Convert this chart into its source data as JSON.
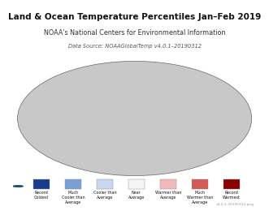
{
  "title": "Land & Ocean Temperature Percentiles Jan–Feb 2019",
  "subtitle": "NOAA's National Centers for Environmental Information",
  "datasource": "Data Source: NOAAGlobalTemp v4.0.1–20190312",
  "title_fontsize": 7.5,
  "subtitle_fontsize": 5.8,
  "datasource_fontsize": 4.8,
  "fig_background": "#ffffff",
  "legend_labels": [
    "Record\nColdest",
    "Much\nCooler than\nAverage",
    "Cooler than\nAverage",
    "Near\nAverage",
    "Warmer than\nAverage",
    "Much\nWarmer than\nAverage",
    "Record\nWarmest"
  ],
  "legend_colors": [
    "#1a3c8f",
    "#7b9fd4",
    "#c8d8f0",
    "#f5f5f5",
    "#f5b8b8",
    "#d45a5a",
    "#8b0000"
  ],
  "map_colors": [
    "#1a3c8f",
    "#7b9fd4",
    "#c8d8f0",
    "#f5f5f5",
    "#f5b8b8",
    "#d45a5a",
    "#8b0000"
  ],
  "ocean_color": "#c8c8c8",
  "land_border_color": "#222222",
  "version_text": "v4.0.1-20190312.png"
}
